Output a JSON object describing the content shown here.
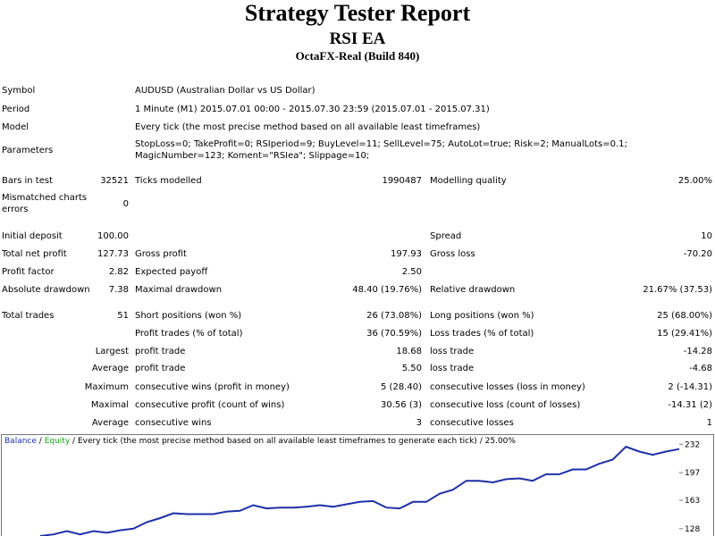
{
  "header": {
    "title": "Strategy Tester Report",
    "subtitle": "RSI EA",
    "server": "OctaFX-Real (Build 840)"
  },
  "info": [
    {
      "label": "Symbol",
      "value": "AUDUSD (Australian Dollar vs US Dollar)"
    },
    {
      "label": "Period",
      "value": "1 Minute (M1) 2015.07.01 00:00 - 2015.07.30 23:59 (2015.07.01 - 2015.07.31)"
    },
    {
      "label": "Model",
      "value": "Every tick (the most precise method based on all available least timeframes)"
    },
    {
      "label": "Parameters",
      "value": "StopLoss=0; TakeProfit=0; RSIperiod=9; BuyLevel=11; SellLevel=75; AutoLot=true; Risk=2; ManualLots=0.1; MagicNumber=123; Koment=\"RSIea\"; Slippage=10;"
    }
  ],
  "stats": [
    [
      "Bars in test",
      "32521",
      "Ticks modelled",
      "1990487",
      "Modelling quality",
      "25.00%"
    ],
    [
      "Mismatched charts errors",
      "0",
      null,
      null,
      null,
      null
    ],
    [
      "Initial deposit",
      "100.00",
      null,
      null,
      "Spread",
      "10"
    ],
    [
      "Total net profit",
      "127.73",
      "Gross profit",
      "197.93",
      "Gross loss",
      "-70.20"
    ],
    [
      "Profit factor",
      "2.82",
      "Expected payoff",
      "2.50",
      null,
      null
    ],
    [
      "Absolute drawdown",
      "7.38",
      "Maximal drawdown",
      "48.40 (19.76%)",
      "Relative drawdown",
      "21.67% (37.53)"
    ],
    [
      "Total trades",
      "51",
      "Short positions (won %)",
      "26 (73.08%)",
      "Long positions (won %)",
      "25 (68.00%)"
    ],
    [
      null,
      null,
      "Profit trades (% of total)",
      "36 (70.59%)",
      "Loss trades (% of total)",
      "15 (29.41%)"
    ],
    [
      null,
      "Largest",
      "profit trade",
      "18.68",
      "loss trade",
      "-14.28"
    ],
    [
      null,
      "Average",
      "profit trade",
      "5.50",
      "loss trade",
      "-4.68"
    ],
    [
      null,
      "Maximum",
      "consecutive wins (profit in money)",
      "5 (28.40)",
      "consecutive losses (loss in money)",
      "2 (-14.31)"
    ],
    [
      null,
      "Maximal",
      "consecutive profit (count of wins)",
      "30.56 (3)",
      "consecutive loss (count of losses)",
      "-14.31 (2)"
    ],
    [
      null,
      "Average",
      "consecutive wins",
      "3",
      "consecutive losses",
      "1"
    ]
  ],
  "graph": {
    "series": [
      {
        "name": "Balance",
        "color": "#1f2fa8"
      },
      {
        "name": "Equity",
        "color": "#1aa01a"
      }
    ],
    "separator": "/",
    "description": "Every tick (the most precise method based on all available least timeframes to generate each tick)",
    "quality": "25.00%",
    "ylim": [
      119,
      240
    ],
    "yticks": [
      232,
      197,
      163,
      128
    ],
    "values": [
      119,
      121,
      125,
      121,
      125,
      123,
      126,
      128,
      136,
      141,
      147,
      146,
      146,
      146,
      149,
      150,
      157,
      153,
      154,
      154,
      155,
      157,
      155,
      158,
      161,
      162,
      154,
      153,
      161,
      161,
      171,
      176,
      187,
      187,
      185,
      189,
      190,
      187,
      195,
      195,
      201,
      201,
      208,
      213,
      229,
      223,
      219,
      223,
      226
    ]
  }
}
